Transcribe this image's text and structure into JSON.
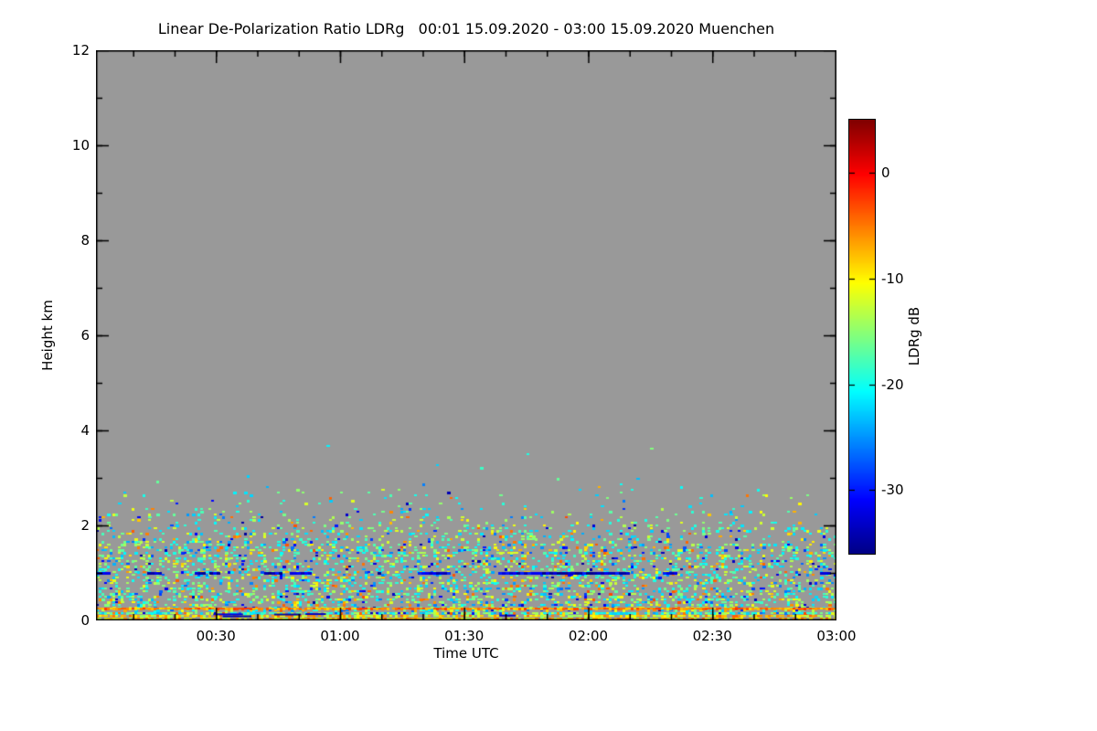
{
  "chart_data": {
    "type": "heatmap",
    "title": "Linear De-Polarization Ratio LDRg   00:01 15.09.2020 - 03:00 15.09.2020 Muenchen",
    "xlabel": "Time UTC",
    "ylabel": "Height km",
    "time_start": "00:01",
    "time_end": "03:00",
    "date": "15.09.2020",
    "station": "Muenchen",
    "x_range_minutes": [
      1,
      180
    ],
    "x_minor_step_minutes": 10,
    "xticks": [
      {
        "minute": 30,
        "label": "00:30"
      },
      {
        "minute": 60,
        "label": "01:00"
      },
      {
        "minute": 90,
        "label": "01:30"
      },
      {
        "minute": 120,
        "label": "02:00"
      },
      {
        "minute": 150,
        "label": "02:30"
      },
      {
        "minute": 180,
        "label": "03:00"
      }
    ],
    "ylim_km": [
      0,
      12
    ],
    "y_minor_step_km": 1,
    "yticks": [
      {
        "km": 0,
        "label": "0"
      },
      {
        "km": 2,
        "label": "2"
      },
      {
        "km": 4,
        "label": "4"
      },
      {
        "km": 6,
        "label": "6"
      },
      {
        "km": 8,
        "label": "8"
      },
      {
        "km": 10,
        "label": "10"
      },
      {
        "km": 12,
        "label": "12"
      }
    ],
    "plot_background": "#999999",
    "frame_color": "#000000",
    "colorbar": {
      "label": "LDRg dB",
      "value_min": -36,
      "value_max": 5,
      "colormap": "jet",
      "ticks": [
        {
          "value": 0,
          "label": "0"
        },
        {
          "value": -10,
          "label": "-10"
        },
        {
          "value": -20,
          "label": "-20"
        },
        {
          "value": -30,
          "label": "-30"
        }
      ]
    },
    "features": {
      "seed": 20200915,
      "speckle_max_height_km": 3.9,
      "surface_band_top_km": 0.2,
      "ground_clutter_line_km": 0.25,
      "ground_clutter_db": [
        -9,
        -2
      ],
      "melting_blue_line_km": 1.0,
      "blue_line_db": [
        -36,
        -29
      ],
      "speckle_db_range": [
        -35,
        -3
      ],
      "density_profile": [
        {
          "top_km": 0.2,
          "p": 0.8
        },
        {
          "top_km": 0.5,
          "p": 0.42
        },
        {
          "top_km": 1.0,
          "p": 0.34
        },
        {
          "top_km": 1.6,
          "p": 0.36
        },
        {
          "top_km": 2.0,
          "p": 0.22
        },
        {
          "top_km": 2.4,
          "p": 0.09
        },
        {
          "top_km": 2.8,
          "p": 0.035
        },
        {
          "top_km": 3.3,
          "p": 0.006
        },
        {
          "top_km": 3.9,
          "p": 0.0015
        }
      ]
    }
  }
}
